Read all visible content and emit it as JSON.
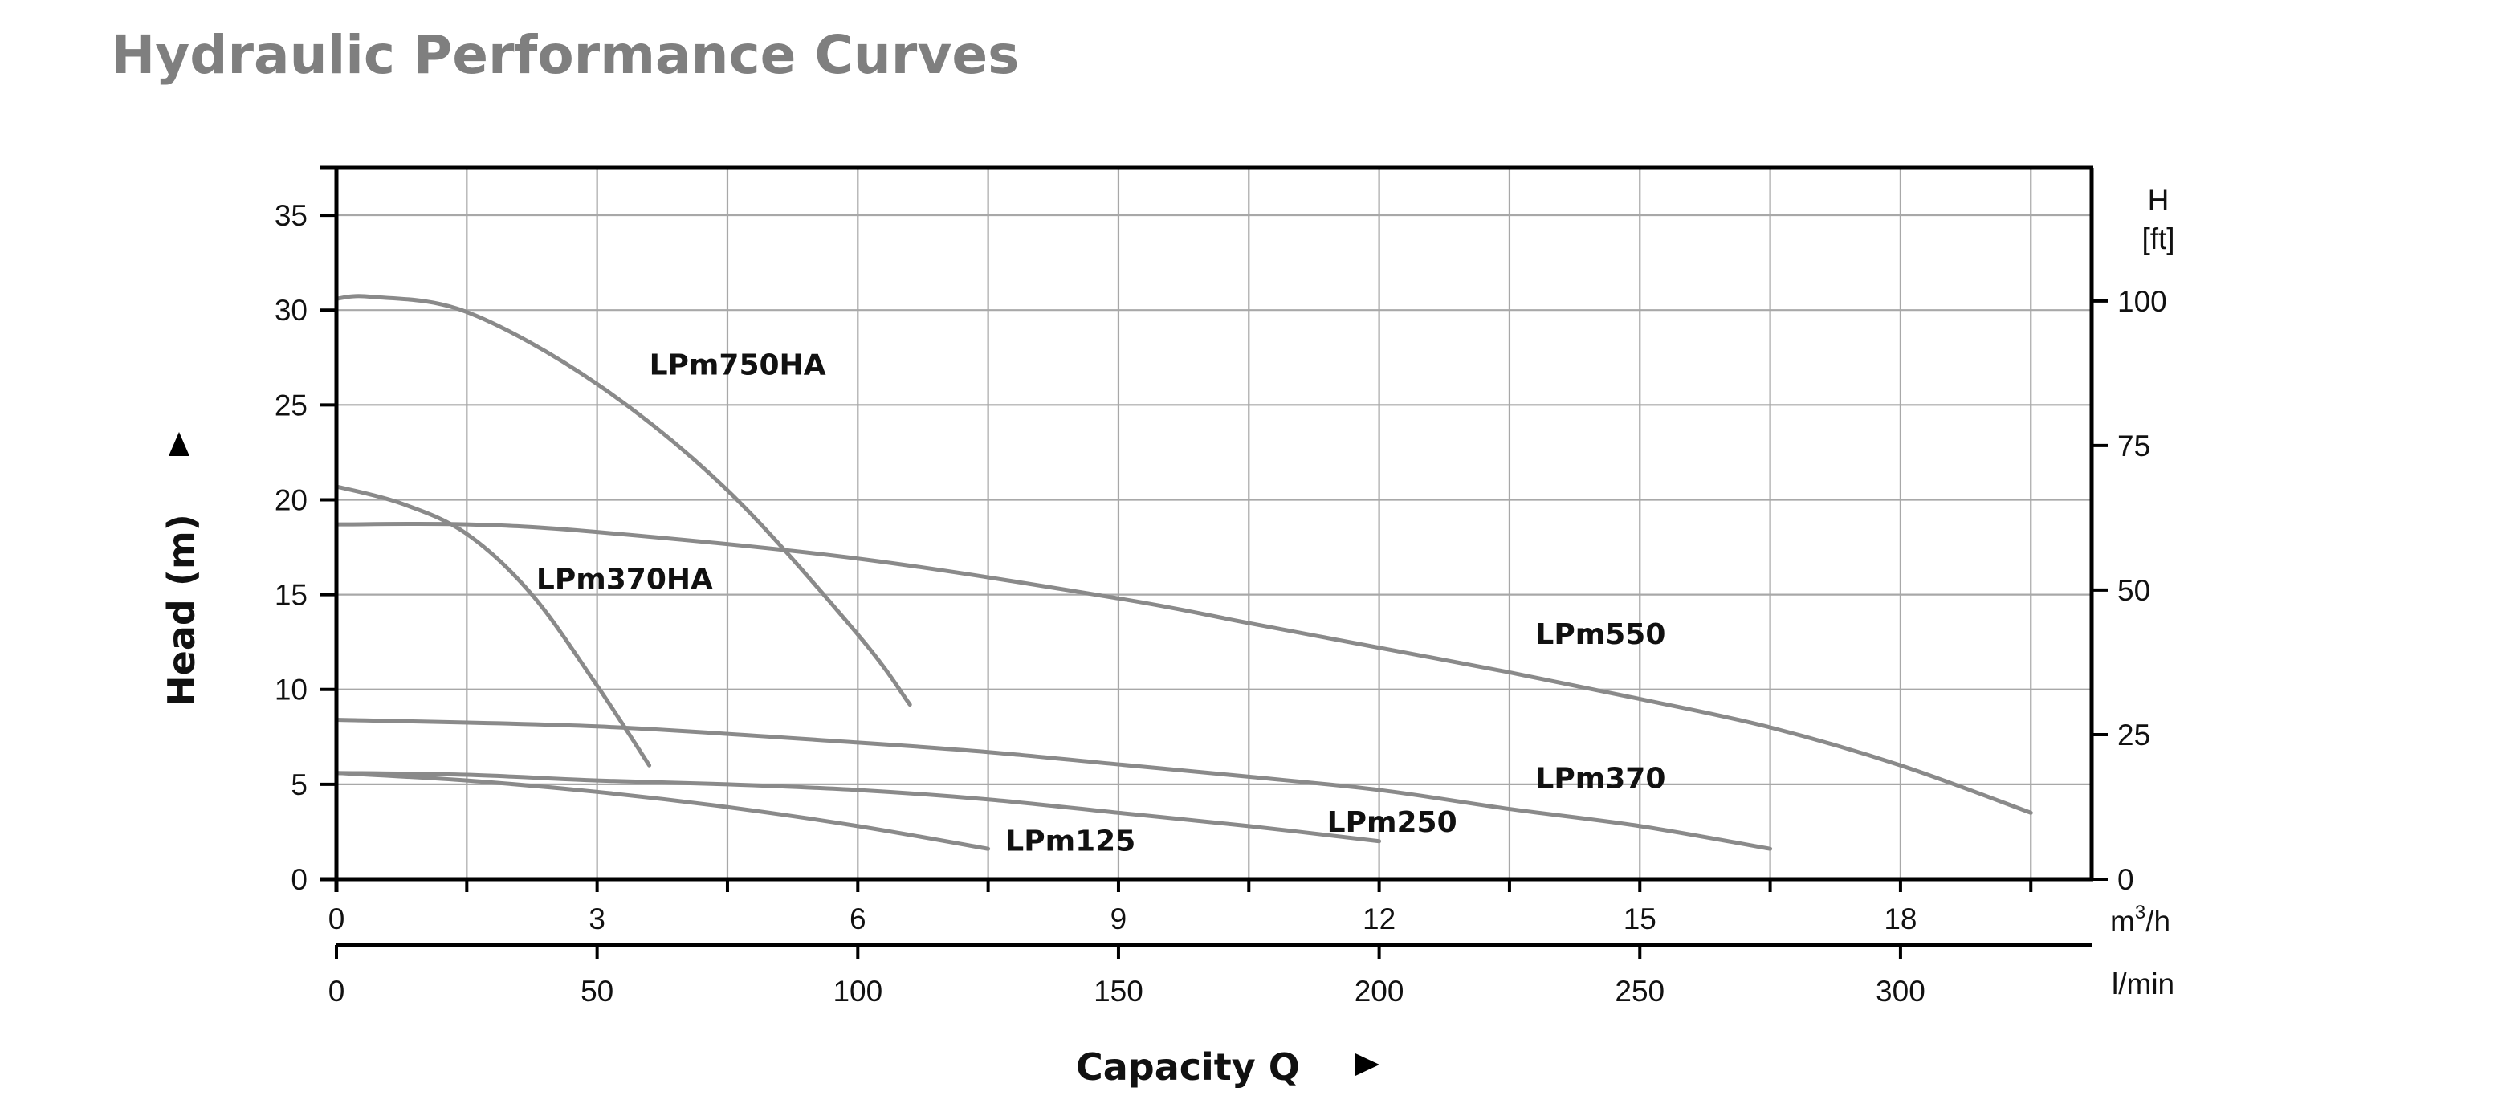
{
  "page": {
    "title": "Hydraulic Performance Curves"
  },
  "chart_data": {
    "type": "line",
    "title": "Hydraulic Performance Curves",
    "xlabel": "Capacity Q",
    "ylabel": "Head (m)",
    "y2label": [
      "H",
      "[ft]"
    ],
    "x_unit": "m³/h",
    "x2_unit": "l/min",
    "xlim": [
      0,
      20.2
    ],
    "ylim": [
      0,
      37.5
    ],
    "grid": true,
    "x_ticks": [
      0,
      3,
      6,
      9,
      12,
      15,
      18
    ],
    "x_tick_labels": [
      "0",
      "3",
      "6",
      "9",
      "12",
      "15",
      "18"
    ],
    "x_minor_ticks": [
      1.5,
      4.5,
      7.5,
      10.5,
      13.5,
      16.5,
      19.5
    ],
    "x2_ticks_lmin": [
      0,
      50,
      100,
      150,
      200,
      250,
      300
    ],
    "x2_tick_labels": [
      "0",
      "50",
      "100",
      "150",
      "200",
      "250",
      "300"
    ],
    "y_ticks": [
      0,
      5,
      10,
      15,
      20,
      25,
      30,
      35
    ],
    "y_tick_labels": [
      "0",
      "5",
      "10",
      "15",
      "20",
      "25",
      "30",
      "35"
    ],
    "y2_ticks_ft": [
      0,
      25,
      50,
      75,
      100
    ],
    "y2_tick_labels": [
      "0",
      "25",
      "50",
      "75",
      "100"
    ],
    "series": [
      {
        "name": "LPm750HA",
        "x": [
          0,
          0.4,
          1.5,
          3,
          4.5,
          6,
          6.6
        ],
        "y": [
          30.6,
          30.7,
          29.9,
          26.1,
          20.5,
          12.9,
          9.2
        ],
        "label_at": [
          3.6,
          26.6
        ]
      },
      {
        "name": "LPm370HA",
        "x": [
          0,
          0.75,
          1.5,
          2.25,
          3,
          3.6
        ],
        "y": [
          20.7,
          19.8,
          18.2,
          15.0,
          10.2,
          6.0
        ],
        "label_at": [
          2.3,
          15.3
        ]
      },
      {
        "name": "LPm550",
        "x": [
          0,
          1.5,
          3,
          6,
          9,
          10.5,
          12,
          13.5,
          15,
          16.5,
          18,
          19.5
        ],
        "y": [
          18.7,
          18.7,
          18.3,
          16.9,
          14.8,
          13.5,
          12.2,
          10.9,
          9.5,
          8.0,
          6.0,
          3.5
        ],
        "label_at": [
          13.8,
          12.4
        ]
      },
      {
        "name": "LPm370",
        "x": [
          0,
          3,
          6,
          7.5,
          9,
          10.5,
          12,
          13.5,
          15,
          16.5
        ],
        "y": [
          8.4,
          8.05,
          7.2,
          6.7,
          6.05,
          5.4,
          4.7,
          3.7,
          2.8,
          1.6
        ],
        "label_at": [
          13.8,
          4.8
        ]
      },
      {
        "name": "LPm250",
        "x": [
          0,
          1.5,
          3,
          4.5,
          6,
          7.5,
          9,
          10.5,
          12
        ],
        "y": [
          5.6,
          5.5,
          5.2,
          5.0,
          4.7,
          4.2,
          3.5,
          2.8,
          2.0
        ],
        "label_at": [
          11.4,
          2.5
        ]
      },
      {
        "name": "LPm125",
        "x": [
          0,
          1.5,
          3,
          4.5,
          6,
          7.5
        ],
        "y": [
          5.6,
          5.2,
          4.6,
          3.8,
          2.8,
          1.6
        ],
        "label_at": [
          7.7,
          1.5
        ]
      }
    ],
    "colors": {
      "curve": "#8a8a8a",
      "grid": "#a8a8a8",
      "axis": "#000000",
      "title": "#7f7f7f"
    }
  }
}
